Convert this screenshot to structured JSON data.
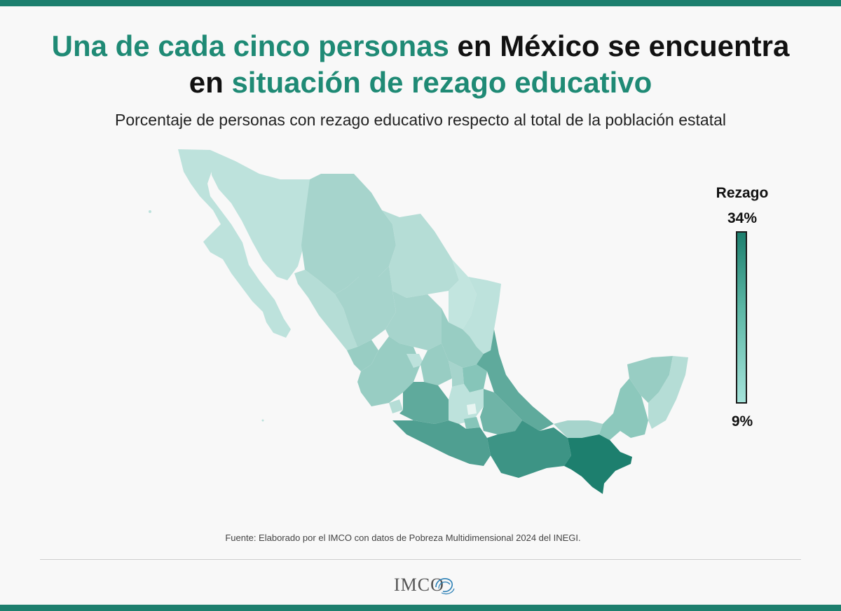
{
  "title": {
    "part1": "Una de cada cinco personas",
    "part2": " en México se encuentra",
    "part3": "en ",
    "part4": "situación de rezago educativo"
  },
  "subtitle": "Porcentaje de personas con rezago educativo respecto al total de la población estatal",
  "legend": {
    "title": "Rezago",
    "max_label": "34%",
    "min_label": "9%",
    "min_value": 9,
    "max_value": 34,
    "color_high": "#1d7f6e",
    "color_low": "#a5e3da"
  },
  "source": "Fuente: Elaborado por el IMCO con datos de Pobreza Multidimensional 2024 del INEGI.",
  "logo": {
    "text": "IMCO"
  },
  "accent_color": "#1f8a75"
}
